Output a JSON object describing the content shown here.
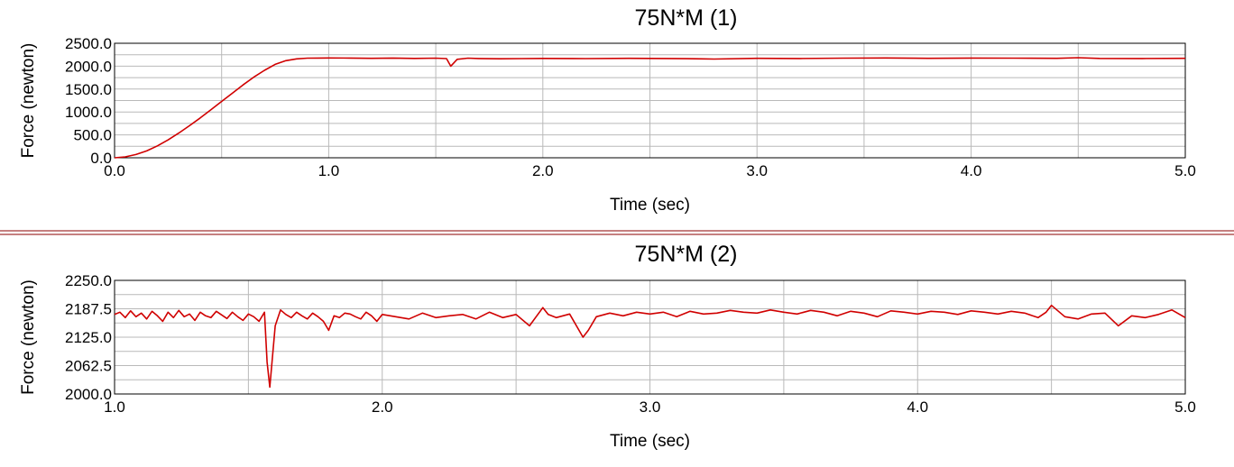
{
  "colors": {
    "series": "#d00000",
    "divider": "#8b0000",
    "grid": "#b9b9b9"
  },
  "chart_data": [
    {
      "type": "line",
      "title": "75N*M  (1)",
      "xlabel": "Time (sec)",
      "ylabel": "Force (newton)",
      "xlim": [
        0.0,
        5.0
      ],
      "ylim": [
        0.0,
        2500.0
      ],
      "x_ticks": [
        0.0,
        1.0,
        2.0,
        3.0,
        4.0,
        5.0
      ],
      "x_tick_labels": [
        "0.0",
        "1.0",
        "2.0",
        "3.0",
        "4.0",
        "5.0"
      ],
      "x_gridlines": [
        0.5,
        1.0,
        1.5,
        2.0,
        2.5,
        3.0,
        3.5,
        4.0,
        4.5
      ],
      "y_ticks": [
        0.0,
        500.0,
        1000.0,
        1500.0,
        2000.0,
        2500.0
      ],
      "y_tick_labels": [
        "0.0",
        "500.0",
        "1000.0",
        "1500.0",
        "2000.0",
        "2500.0"
      ],
      "y_gridlines": [
        250,
        500,
        750,
        1000,
        1250,
        1500,
        1750,
        2000,
        2250
      ],
      "grid": true,
      "series": [
        {
          "x": [
            0.0,
            0.05,
            0.1,
            0.15,
            0.2,
            0.25,
            0.3,
            0.35,
            0.4,
            0.45,
            0.5,
            0.55,
            0.6,
            0.65,
            0.7,
            0.75,
            0.8,
            0.85,
            0.9,
            0.95,
            1.0,
            1.1,
            1.2,
            1.3,
            1.4,
            1.5,
            1.55,
            1.57,
            1.6,
            1.65,
            1.7,
            1.8,
            1.9,
            2.0,
            2.2,
            2.4,
            2.6,
            2.75,
            2.8,
            3.0,
            3.2,
            3.4,
            3.6,
            3.8,
            4.0,
            4.2,
            4.4,
            4.5,
            4.6,
            4.8,
            5.0
          ],
          "values": [
            0,
            20,
            70,
            150,
            260,
            390,
            540,
            700,
            870,
            1050,
            1230,
            1410,
            1590,
            1760,
            1910,
            2040,
            2120,
            2160,
            2175,
            2178,
            2180,
            2178,
            2172,
            2178,
            2170,
            2175,
            2165,
            2000,
            2150,
            2175,
            2168,
            2162,
            2165,
            2170,
            2165,
            2172,
            2168,
            2160,
            2155,
            2172,
            2168,
            2175,
            2180,
            2172,
            2178,
            2175,
            2172,
            2185,
            2170,
            2168,
            2172
          ]
        }
      ]
    },
    {
      "type": "line",
      "title": "75N*M  (2)",
      "xlabel": "Time (sec)",
      "ylabel": "Force (newton)",
      "xlim": [
        1.0,
        5.0
      ],
      "ylim": [
        2000.0,
        2250.0
      ],
      "x_ticks": [
        1.0,
        2.0,
        3.0,
        4.0,
        5.0
      ],
      "x_tick_labels": [
        "1.0",
        "2.0",
        "3.0",
        "4.0",
        "5.0"
      ],
      "x_gridlines": [
        1.5,
        2.0,
        2.5,
        3.0,
        3.5,
        4.0,
        4.5
      ],
      "y_ticks": [
        2000.0,
        2062.5,
        2125.0,
        2187.5,
        2250.0
      ],
      "y_tick_labels": [
        "2000.0",
        "2062.5",
        "2125.0",
        "2187.5",
        "2250.0"
      ],
      "y_gridlines": [
        2031.25,
        2062.5,
        2093.75,
        2125.0,
        2156.25,
        2187.5,
        2218.75
      ],
      "grid": true,
      "series": [
        {
          "x": [
            1.0,
            1.02,
            1.04,
            1.06,
            1.08,
            1.1,
            1.12,
            1.14,
            1.16,
            1.18,
            1.2,
            1.22,
            1.24,
            1.26,
            1.28,
            1.3,
            1.32,
            1.34,
            1.36,
            1.38,
            1.4,
            1.42,
            1.44,
            1.46,
            1.48,
            1.5,
            1.52,
            1.54,
            1.56,
            1.57,
            1.58,
            1.6,
            1.62,
            1.64,
            1.66,
            1.68,
            1.7,
            1.72,
            1.74,
            1.76,
            1.78,
            1.8,
            1.82,
            1.84,
            1.86,
            1.88,
            1.9,
            1.92,
            1.94,
            1.96,
            1.98,
            2.0,
            2.05,
            2.1,
            2.15,
            2.2,
            2.25,
            2.3,
            2.35,
            2.4,
            2.45,
            2.5,
            2.55,
            2.6,
            2.62,
            2.65,
            2.7,
            2.75,
            2.77,
            2.8,
            2.85,
            2.9,
            2.95,
            3.0,
            3.05,
            3.1,
            3.15,
            3.2,
            3.25,
            3.3,
            3.35,
            3.4,
            3.45,
            3.5,
            3.55,
            3.6,
            3.65,
            3.7,
            3.75,
            3.8,
            3.85,
            3.9,
            3.95,
            4.0,
            4.05,
            4.1,
            4.15,
            4.2,
            4.25,
            4.3,
            4.35,
            4.4,
            4.45,
            4.48,
            4.5,
            4.55,
            4.6,
            4.65,
            4.7,
            4.75,
            4.8,
            4.85,
            4.9,
            4.95,
            5.0
          ],
          "values": [
            2175,
            2180,
            2168,
            2183,
            2170,
            2178,
            2165,
            2182,
            2172,
            2160,
            2180,
            2168,
            2184,
            2170,
            2176,
            2162,
            2180,
            2172,
            2168,
            2182,
            2174,
            2166,
            2180,
            2170,
            2162,
            2176,
            2170,
            2160,
            2180,
            2070,
            2015,
            2150,
            2185,
            2175,
            2168,
            2180,
            2172,
            2165,
            2178,
            2170,
            2160,
            2140,
            2172,
            2168,
            2178,
            2176,
            2170,
            2165,
            2180,
            2172,
            2160,
            2175,
            2170,
            2165,
            2178,
            2168,
            2172,
            2175,
            2165,
            2180,
            2168,
            2175,
            2150,
            2190,
            2175,
            2168,
            2176,
            2125,
            2140,
            2170,
            2178,
            2172,
            2180,
            2176,
            2180,
            2170,
            2182,
            2176,
            2178,
            2184,
            2180,
            2178,
            2185,
            2180,
            2176,
            2184,
            2180,
            2172,
            2182,
            2178,
            2170,
            2183,
            2180,
            2176,
            2182,
            2180,
            2175,
            2183,
            2180,
            2176,
            2182,
            2178,
            2168,
            2180,
            2195,
            2170,
            2165,
            2176,
            2178,
            2150,
            2172,
            2168,
            2175,
            2185,
            2168
          ]
        }
      ]
    }
  ]
}
